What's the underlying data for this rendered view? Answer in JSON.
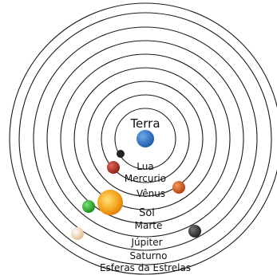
{
  "diagram": {
    "labels": {
      "terra": "Terra",
      "lua": "Lua",
      "mercurio": "Mercurio",
      "venus": "Vênus",
      "sol": "Sol",
      "marte": "Marte",
      "jupiter": "Júpiter",
      "saturno": "Saturno",
      "esferas": "Esferas da Estrelas"
    },
    "colors": {
      "terra": "#1d5aa8",
      "lua": "#2a2a2a",
      "mercurio": "#c0392b",
      "venus": "#d35400",
      "sol": "#f39c12",
      "marte": "#27a327",
      "jupiter": "#f3d9b5",
      "saturno": "#3a3a3a"
    }
  }
}
